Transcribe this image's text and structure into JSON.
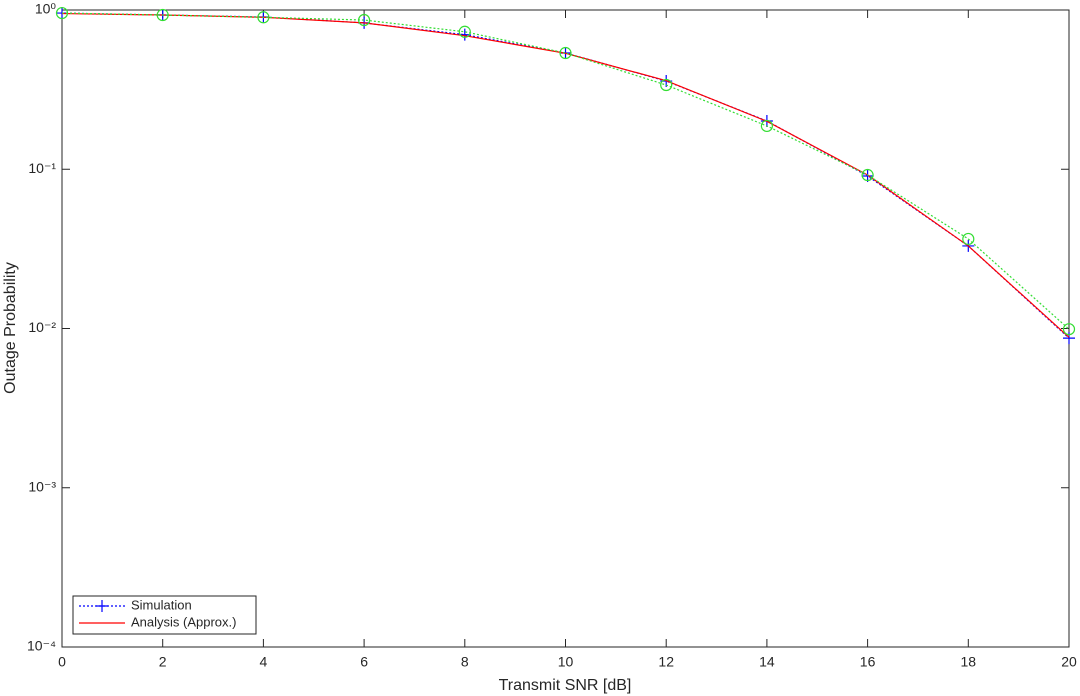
{
  "chart_data": {
    "type": "line",
    "x_label": "Transmit SNR [dB]",
    "y_label": "Outage Probability",
    "x": [
      0,
      2,
      4,
      6,
      8,
      10,
      12,
      14,
      16,
      18,
      20
    ],
    "series": [
      {
        "name": "Simulation",
        "color": "#0000ff",
        "dash": "dotted",
        "marker": "plus",
        "values": [
          0.957,
          0.93,
          0.904,
          0.83,
          0.7,
          0.537,
          0.358,
          0.201,
          0.0907,
          0.033,
          0.0087
        ]
      },
      {
        "name": "Analysis (Approx.)",
        "color": "#ff0000",
        "dash": "solid",
        "marker": "none",
        "values": [
          0.95,
          0.93,
          0.9,
          0.83,
          0.69,
          0.535,
          0.36,
          0.2,
          0.092,
          0.033,
          0.0088
        ]
      },
      {
        "color": "#33dd33",
        "dash": "dotted",
        "marker": "circle",
        "values": [
          0.957,
          0.93,
          0.9,
          0.865,
          0.73,
          0.537,
          0.338,
          0.187,
          0.092,
          0.0365,
          0.0099
        ]
      }
    ],
    "xlim": [
      0,
      20
    ],
    "xticks": [
      0,
      2,
      4,
      6,
      8,
      10,
      12,
      14,
      16,
      18,
      20
    ],
    "ylim": [
      0.0001,
      1
    ],
    "log_y": true,
    "yticks": [
      {
        "value": 0.0001,
        "label": "10⁻⁴"
      },
      {
        "value": 0.001,
        "label": "10⁻³"
      },
      {
        "value": 0.01,
        "label": "10⁻²"
      },
      {
        "value": 0.1,
        "label": "10⁻¹"
      },
      {
        "value": 1,
        "label": "10⁰"
      }
    ],
    "grid": false,
    "legend": "lower left"
  }
}
